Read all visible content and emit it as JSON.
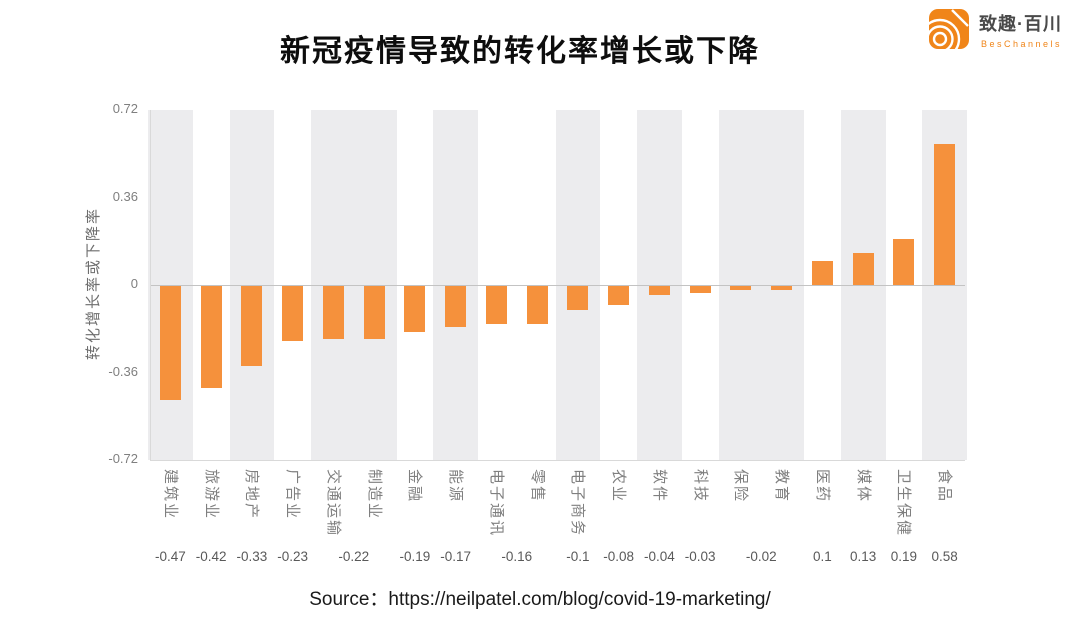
{
  "page": {
    "title": "新冠疫情导致的转化率增长或下降",
    "source_text": "Source：https://neilpatel.com/blog/covid-19-marketing/"
  },
  "logo": {
    "name": "致趣·百川",
    "subtitle": "BesChannels",
    "brand_color": "#F08519"
  },
  "chart_data": {
    "type": "bar",
    "title": "新冠疫情导致的转化率增长或下降",
    "xlabel": "",
    "ylabel": "转化增长率或下降率",
    "ylim": [
      -0.72,
      0.72
    ],
    "yticks": [
      "0.72",
      "0.36",
      "0",
      "-0.36",
      "-0.72"
    ],
    "grid": false,
    "legend": false,
    "bar_color": "#F5913C",
    "band_color": "#ECECEE",
    "categories": [
      "建筑业",
      "旅游业",
      "房地产",
      "广告业",
      "交通运输",
      "制造业",
      "金融",
      "能源",
      "电子通讯",
      "零售",
      "电子商务",
      "农业",
      "软件",
      "科技",
      "保险",
      "教育",
      "医药",
      "媒体",
      "卫生保健",
      "食品"
    ],
    "values": [
      -0.47,
      -0.42,
      -0.33,
      -0.23,
      -0.22,
      -0.22,
      -0.19,
      -0.17,
      -0.16,
      -0.16,
      -0.1,
      -0.08,
      -0.04,
      -0.03,
      -0.02,
      -0.02,
      0.1,
      0.13,
      0.19,
      0.58
    ],
    "label_groups": [
      {
        "label": "-0.47",
        "cols": [
          0
        ]
      },
      {
        "label": "-0.42",
        "cols": [
          1
        ]
      },
      {
        "label": "-0.33",
        "cols": [
          2
        ]
      },
      {
        "label": "-0.23",
        "cols": [
          3
        ]
      },
      {
        "label": "-0.22",
        "cols": [
          4,
          5
        ]
      },
      {
        "label": "-0.19",
        "cols": [
          6
        ]
      },
      {
        "label": "-0.17",
        "cols": [
          7
        ]
      },
      {
        "label": "-0.16",
        "cols": [
          8,
          9
        ]
      },
      {
        "label": "-0.1",
        "cols": [
          10
        ]
      },
      {
        "label": "-0.08",
        "cols": [
          11
        ]
      },
      {
        "label": "-0.04",
        "cols": [
          12
        ]
      },
      {
        "label": "-0.03",
        "cols": [
          13
        ]
      },
      {
        "label": "-0.02",
        "cols": [
          14,
          15
        ]
      },
      {
        "label": "0.1",
        "cols": [
          16
        ]
      },
      {
        "label": "0.13",
        "cols": [
          17
        ]
      },
      {
        "label": "0.19",
        "cols": [
          18
        ]
      },
      {
        "label": "0.58",
        "cols": [
          19
        ]
      }
    ]
  }
}
